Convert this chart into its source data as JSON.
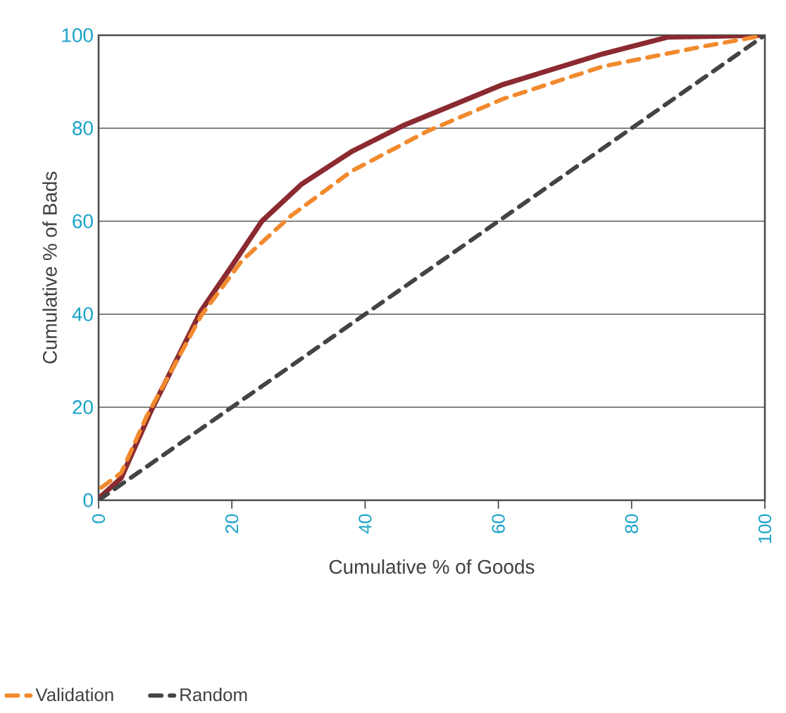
{
  "chart_data": {
    "type": "line",
    "xlabel": "Cumulative % of Goods",
    "ylabel": "Cumulative % of Bads",
    "xlim": [
      0,
      100
    ],
    "ylim": [
      0,
      100
    ],
    "xticks": [
      0,
      20,
      40,
      60,
      80,
      100
    ],
    "yticks": [
      0,
      20,
      40,
      60,
      80,
      100
    ],
    "grid": "y",
    "legend": "bottom left",
    "series": [
      {
        "color": "#8b2a30",
        "line_style": "solid",
        "x": [
          0,
          0.4,
          3.4,
          7.9,
          15.4,
          20,
          24.5,
          30.5,
          38,
          45.6,
          60.7,
          75.7,
          85.5,
          100
        ],
        "values": [
          0,
          0.9,
          4.8,
          19.3,
          40.8,
          50.4,
          60,
          68,
          75,
          80.5,
          89.4,
          96,
          99.6,
          100
        ]
      },
      {
        "name": "Validation",
        "color": "#f28a2e",
        "line_style": "dashed",
        "x": [
          0.4,
          3.4,
          7.2,
          15.4,
          21.5,
          28.9,
          38,
          49.4,
          60.7,
          75.7,
          90.8,
          100
        ],
        "values": [
          2.7,
          5.9,
          18,
          39.7,
          51.5,
          61.2,
          70.8,
          79.4,
          86.3,
          93.3,
          97.6,
          100
        ]
      },
      {
        "name": "Random",
        "color": "#444444",
        "line_style": "dashed",
        "x": [
          0,
          100
        ],
        "values": [
          0,
          100
        ]
      }
    ]
  }
}
